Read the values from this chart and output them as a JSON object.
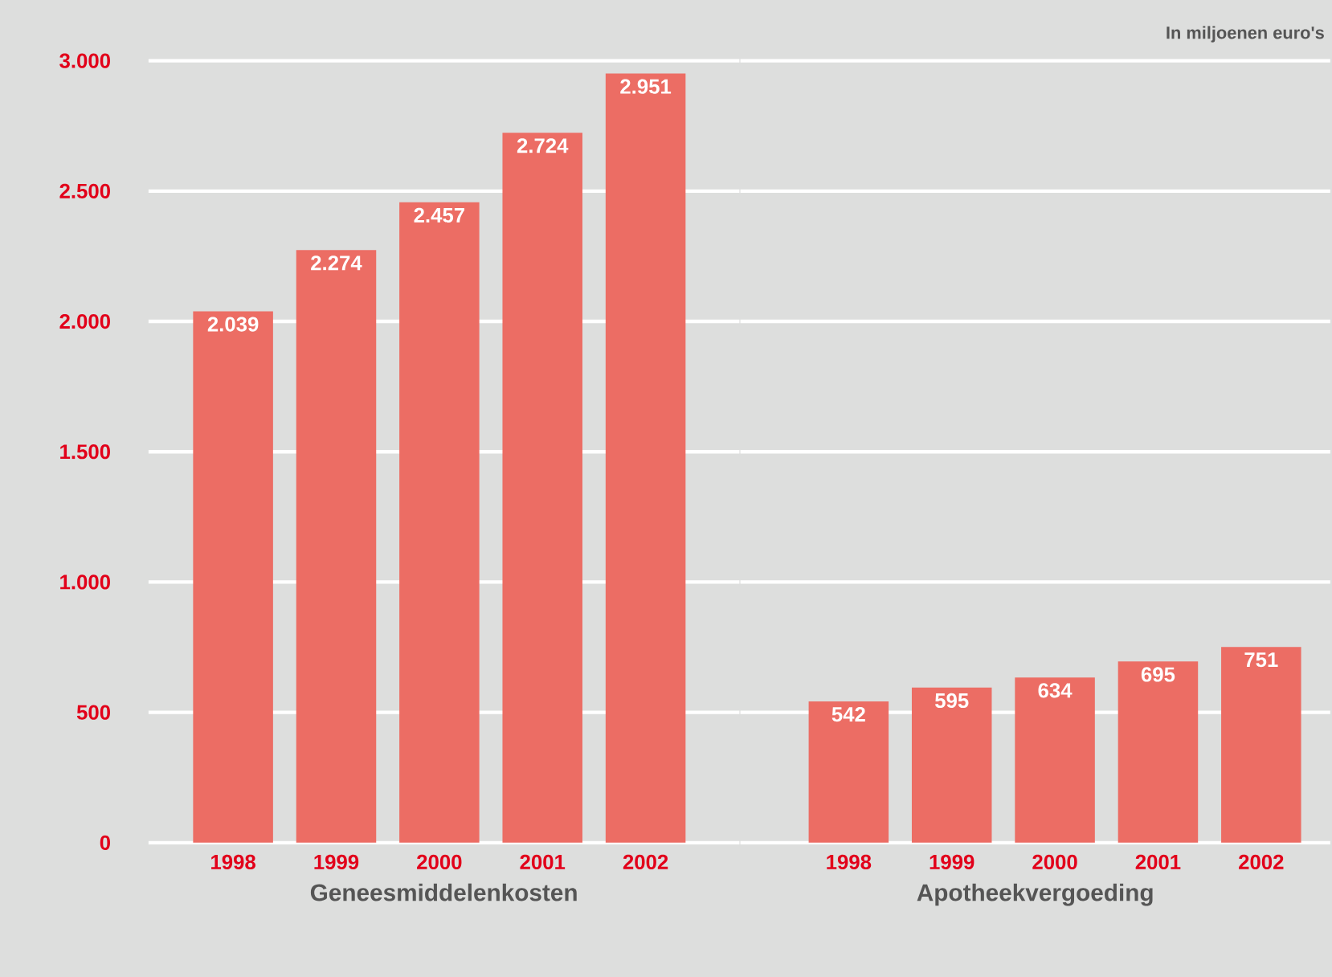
{
  "chart_data": [
    {
      "type": "bar",
      "xlabel": "Geneesmiddelenkosten",
      "categories": [
        "1998",
        "1999",
        "2000",
        "2001",
        "2002"
      ],
      "values": [
        2039,
        2274,
        2457,
        2724,
        2951
      ],
      "value_labels": [
        "2.039",
        "2.274",
        "2.457",
        "2.724",
        "2.951"
      ],
      "color": "#ec6d64",
      "ylim": [
        0,
        3000
      ],
      "yticks": [
        0,
        500,
        {
          "value": 1000,
          "label": "1.000"
        },
        {
          "value": 1500,
          "label": "1.500"
        },
        {
          "value": 2000,
          "label": "2.000"
        },
        {
          "value": 2500,
          "label": "2.500"
        },
        {
          "value": 3000,
          "label": "3.000"
        }
      ],
      "grid": "y"
    },
    {
      "type": "bar",
      "xlabel": "Apotheekvergoeding",
      "categories": [
        "1998",
        "1999",
        "2000",
        "2001",
        "2002"
      ],
      "values": [
        542,
        595,
        634,
        695,
        751
      ],
      "value_labels": [
        "542",
        "595",
        "634",
        "695",
        "751"
      ],
      "color": "#ec6d64",
      "ylim": [
        0,
        3000
      ],
      "yticks": [
        {
          "value": 0,
          "label": null
        },
        {
          "value": 500,
          "label": null
        },
        {
          "value": 1000,
          "label": null
        },
        {
          "value": 1500,
          "label": null
        },
        {
          "value": 2000,
          "label": null
        },
        {
          "value": 2500,
          "label": null
        },
        {
          "value": 3000,
          "label": null
        }
      ],
      "grid": "y",
      "tick_labels": "x",
      "annotations": [
        "In miljoenen euro's"
      ]
    }
  ]
}
